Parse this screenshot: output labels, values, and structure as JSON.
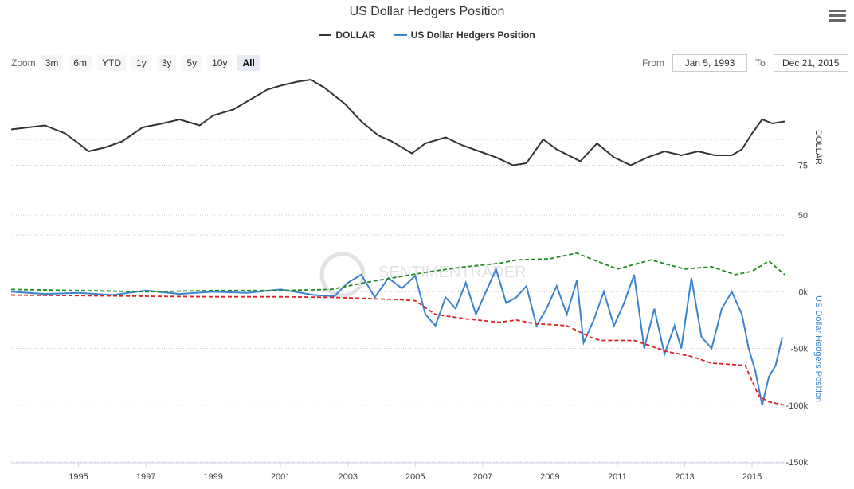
{
  "title": "US Dollar Hedgers Position",
  "legend": [
    {
      "label": "DOLLAR",
      "color": "#333333"
    },
    {
      "label": "US Dollar Hedgers Position",
      "color": "#3a83cf"
    }
  ],
  "zoom": {
    "label": "Zoom",
    "buttons": [
      "3m",
      "6m",
      "YTD",
      "1y",
      "3y",
      "5y",
      "10y",
      "All"
    ],
    "active": "All"
  },
  "range": {
    "from_label": "From",
    "from_value": "Jan 5, 1993",
    "to_label": "To",
    "to_value": "Dec 21, 2015"
  },
  "watermark": "SENTIMENTRADER",
  "chart_data": {
    "type": "line",
    "x_axis": {
      "ticks": [
        "1995",
        "1997",
        "1999",
        "2001",
        "2003",
        "2005",
        "2007",
        "2009",
        "2011",
        "2013",
        "2015"
      ],
      "range": [
        1993.0,
        2015.97
      ]
    },
    "panels": [
      {
        "name": "DOLLAR",
        "ylabel": "DOLLAR",
        "y_ticks": [
          "75",
          "50"
        ],
        "y_tick_values": [
          75,
          50
        ],
        "ylim": [
          50,
          118
        ],
        "series": [
          {
            "name": "DOLLAR",
            "color": "#333333",
            "style": "solid",
            "x": [
              1993.0,
              1993.5,
              1994.0,
              1994.6,
              1995.0,
              1995.3,
              1995.8,
              1996.3,
              1996.9,
              1997.5,
              1998.0,
              1998.6,
              1999.0,
              1999.6,
              2000.0,
              2000.6,
              2001.0,
              2001.5,
              2001.9,
              2002.3,
              2002.9,
              2003.4,
              2003.9,
              2004.3,
              2004.9,
              2005.3,
              2005.9,
              2006.4,
              2006.9,
              2007.4,
              2007.9,
              2008.3,
              2008.8,
              2009.2,
              2009.9,
              2010.4,
              2010.9,
              2011.4,
              2011.9,
              2012.4,
              2012.9,
              2013.4,
              2013.9,
              2014.4,
              2014.7,
              2015.0,
              2015.3,
              2015.6,
              2015.97
            ],
            "values": [
              93,
              94,
              95,
              91,
              86,
              82,
              84,
              87,
              94,
              96,
              98,
              95,
              100,
              103,
              107,
              113,
              115,
              117,
              118,
              114,
              106,
              97,
              90,
              87,
              81,
              86,
              89,
              85,
              82,
              79,
              75,
              76,
              88,
              83,
              77,
              86,
              79,
              75,
              79,
              82,
              80,
              82,
              80,
              80,
              83,
              91,
              98,
              96,
              97
            ]
          }
        ]
      },
      {
        "name": "US Dollar Hedgers Position",
        "ylabel": "US Dollar Hedgers Position",
        "y_ticks": [
          "0k",
          "-50k",
          "-100k",
          "-150k"
        ],
        "y_tick_values": [
          0,
          -50000,
          -100000,
          -150000
        ],
        "ylim": [
          -150000,
          50000
        ],
        "series": [
          {
            "name": "US Dollar Hedgers Position",
            "color": "#3a83cf",
            "style": "solid",
            "x": [
              1993.0,
              1994.0,
              1995.0,
              1996.0,
              1997.0,
              1998.0,
              1999.0,
              2000.0,
              2001.0,
              2002.0,
              2002.6,
              2003.0,
              2003.4,
              2003.8,
              2004.2,
              2004.6,
              2005.0,
              2005.3,
              2005.6,
              2005.9,
              2006.2,
              2006.5,
              2006.8,
              2007.1,
              2007.4,
              2007.7,
              2008.0,
              2008.3,
              2008.6,
              2008.9,
              2009.2,
              2009.5,
              2009.8,
              2010.0,
              2010.3,
              2010.6,
              2010.9,
              2011.2,
              2011.5,
              2011.8,
              2012.1,
              2012.4,
              2012.7,
              2012.9,
              2013.2,
              2013.5,
              2013.8,
              2014.1,
              2014.4,
              2014.7,
              2014.9,
              2015.1,
              2015.3,
              2015.5,
              2015.7,
              2015.9
            ],
            "values": [
              0,
              -2000,
              -1000,
              -3000,
              1000,
              -2000,
              0,
              -1000,
              2000,
              -3000,
              -4000,
              8000,
              15000,
              -5000,
              12000,
              3000,
              14000,
              -20000,
              -30000,
              -5000,
              -15000,
              8000,
              -20000,
              0,
              20000,
              -10000,
              -5000,
              5000,
              -30000,
              -15000,
              5000,
              -20000,
              10000,
              -45000,
              -25000,
              0,
              -30000,
              -10000,
              15000,
              -50000,
              -15000,
              -55000,
              -30000,
              -50000,
              12000,
              -40000,
              -50000,
              -15000,
              0,
              -20000,
              -50000,
              -70000,
              -100000,
              -75000,
              -65000,
              -40000
            ]
          },
          {
            "name": "",
            "color": "#1e8a1e",
            "style": "dashed",
            "x": [
              1993.0,
              1995.0,
              1997.0,
              1999.0,
              2001.0,
              2002.5,
              2003.5,
              2004.5,
              2005.5,
              2006.5,
              2007.5,
              2008.0,
              2009.0,
              2009.8,
              2010.3,
              2011.0,
              2012.0,
              2013.0,
              2013.8,
              2014.5,
              2015.0,
              2015.5,
              2015.97
            ],
            "values": [
              2000,
              1000,
              0,
              1000,
              1000,
              2000,
              8000,
              13000,
              18000,
              22000,
              25000,
              28000,
              29000,
              34000,
              28000,
              20000,
              28000,
              20000,
              22000,
              15000,
              18000,
              27000,
              15000
            ]
          },
          {
            "name": "",
            "color": "#dd2222",
            "style": "dashed",
            "x": [
              1993.0,
              1995.0,
              1997.0,
              1999.0,
              2001.0,
              2002.5,
              2003.5,
              2004.5,
              2005.0,
              2005.6,
              2006.5,
              2007.5,
              2008.0,
              2008.5,
              2009.5,
              2010.2,
              2010.5,
              2011.5,
              2012.5,
              2013.2,
              2013.8,
              2014.3,
              2014.8,
              2015.2,
              2015.5,
              2015.97
            ],
            "values": [
              -3000,
              -3500,
              -4000,
              -4500,
              -4500,
              -5000,
              -6000,
              -7000,
              -8000,
              -20000,
              -24000,
              -27000,
              -25000,
              -28000,
              -30000,
              -40000,
              -43000,
              -43000,
              -53000,
              -57000,
              -63000,
              -64000,
              -65000,
              -92000,
              -97000,
              -100000
            ]
          }
        ]
      }
    ],
    "grid": true,
    "legend_position": "top-center"
  }
}
